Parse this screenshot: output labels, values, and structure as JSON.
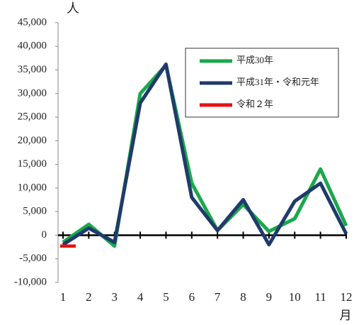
{
  "chart_data": {
    "type": "line",
    "y_label": "人",
    "x_label": "月",
    "categories": [
      "1",
      "2",
      "3",
      "4",
      "5",
      "6",
      "7",
      "8",
      "9",
      "10",
      "11",
      "12"
    ],
    "series": [
      {
        "name": "平成30年",
        "color": "#1aa84a",
        "values": [
          -1500,
          2300,
          -2300,
          30000,
          36000,
          11000,
          1000,
          6500,
          800,
          3500,
          14000,
          2000
        ]
      },
      {
        "name": "平成31年・令和元年",
        "color": "#1f3b6b",
        "values": [
          -2000,
          1500,
          -1500,
          28000,
          36200,
          8000,
          1000,
          7500,
          -2000,
          7200,
          11000,
          300
        ]
      },
      {
        "name": "令和２年",
        "color": "#e81010",
        "values": [
          -2300,
          null,
          null,
          null,
          null,
          null,
          null,
          null,
          null,
          null,
          null,
          null
        ]
      }
    ],
    "ylim": [
      -10000,
      45000
    ],
    "yticks": [
      {
        "value": -10000,
        "label": "-10,000"
      },
      {
        "value": -5000,
        "label": "-5,000"
      },
      0,
      {
        "value": 5000,
        "label": "5,000"
      },
      {
        "value": 10000,
        "label": "10,000"
      },
      {
        "value": 15000,
        "label": "15,000"
      },
      {
        "value": 20000,
        "label": "20,000"
      },
      {
        "value": 25000,
        "label": "25,000"
      },
      {
        "value": 30000,
        "label": "30,000"
      },
      {
        "value": 35000,
        "label": "35,000"
      },
      {
        "value": 40000,
        "label": "40,000"
      },
      {
        "value": 45000,
        "label": "45,000"
      }
    ],
    "negative_tick_color": "#e81010",
    "legend": "upper right"
  }
}
